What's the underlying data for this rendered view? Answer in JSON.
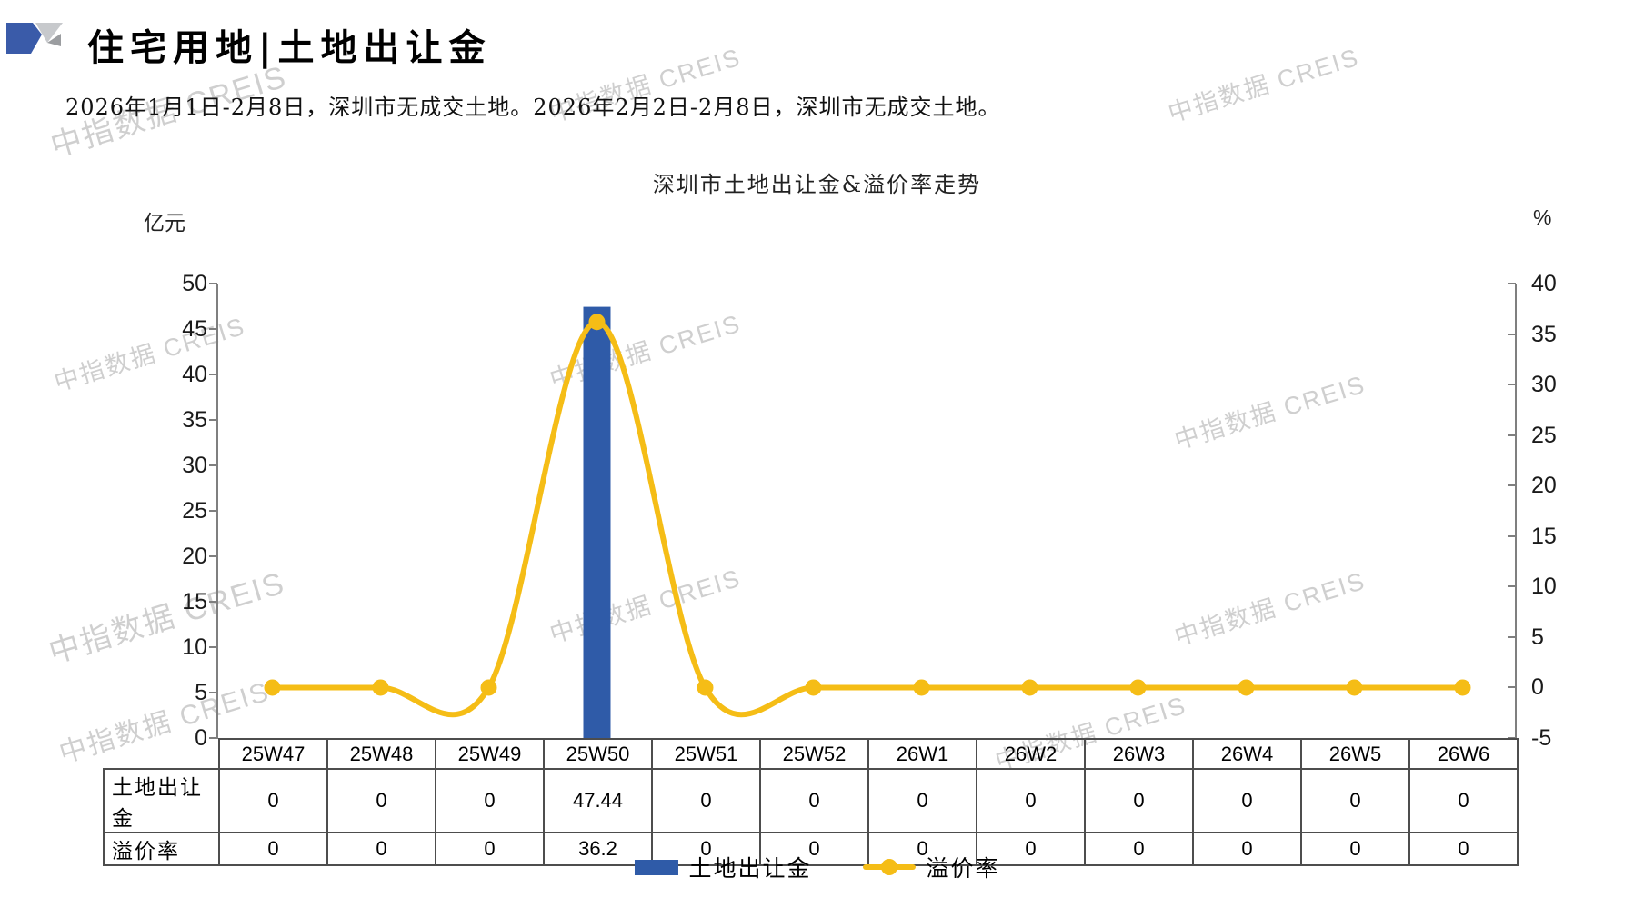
{
  "header": {
    "title": "住宅用地|土地出让金",
    "description": "2026年1月1日-2月8日，深圳市无成交土地。2026年2月2日-2月8日，深圳市无成交土地。"
  },
  "watermark_text": "中指数据 CREIS",
  "colors": {
    "bar_blue": "#2F5BA8",
    "line_yellow": "#F5BD16",
    "logo_blue": "#3A5BA9",
    "logo_gray_light": "#C7C9CC",
    "logo_gray_dark": "#9B9DA0",
    "axis_gray": "#7F7F7F",
    "table_border": "#4D4D4D",
    "watermark_gray": "#C7C7C7"
  },
  "chart_data": {
    "type": "bar+line",
    "title": "深圳市土地出让金&溢价率走势",
    "categories": [
      "25W47",
      "25W48",
      "25W49",
      "25W50",
      "25W51",
      "25W52",
      "26W1",
      "26W2",
      "26W3",
      "26W4",
      "26W5",
      "26W6"
    ],
    "series": [
      {
        "name": "土地出让金",
        "chart": "bar",
        "axis": "left",
        "color": "#2F5BA8",
        "values": [
          0,
          0,
          0,
          47.44,
          0,
          0,
          0,
          0,
          0,
          0,
          0,
          0
        ]
      },
      {
        "name": "溢价率",
        "chart": "line",
        "axis": "right",
        "color": "#F5BD16",
        "values": [
          0,
          0,
          0,
          36.2,
          0,
          0,
          0,
          0,
          0,
          0,
          0,
          0
        ]
      }
    ],
    "left_axis": {
      "unit": "亿元",
      "min": 0,
      "max": 50,
      "ticks": [
        "50",
        "45",
        "40",
        "35",
        "30",
        "25",
        "20",
        "15",
        "10",
        "5",
        "0"
      ]
    },
    "right_axis": {
      "unit": "%",
      "min": -5,
      "max": 40,
      "ticks": [
        "40",
        "35",
        "30",
        "25",
        "20",
        "15",
        "10",
        "5",
        "0",
        "-5"
      ]
    },
    "table": {
      "row_labels": [
        "土地出让金",
        "溢价率"
      ],
      "rows": [
        [
          "0",
          "0",
          "0",
          "47.44",
          "0",
          "0",
          "0",
          "0",
          "0",
          "0",
          "0",
          "0"
        ],
        [
          "0",
          "0",
          "0",
          "36.2",
          "0",
          "0",
          "0",
          "0",
          "0",
          "0",
          "0",
          "0"
        ]
      ]
    },
    "legend": [
      "土地出让金",
      "溢价率"
    ],
    "legend_position": "bottom",
    "grid": false
  }
}
